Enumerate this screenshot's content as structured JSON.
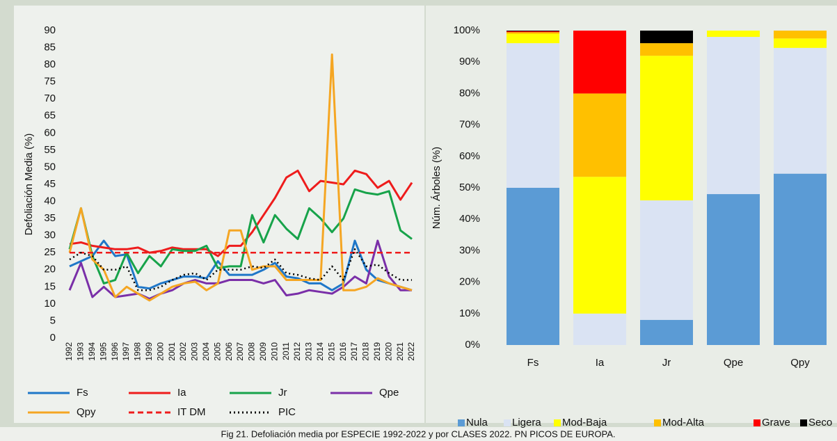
{
  "caption": "Fig 21. Defoliación media por ESPECIE 1992-2022 y por CLASES 2022. PN PICOS DE EUROPA.",
  "chart_data": [
    {
      "type": "line",
      "y_label": "Defoliación Media (%)",
      "categories": [
        "1992",
        "1993",
        "1994",
        "1995",
        "1996",
        "1997",
        "1998",
        "1999",
        "2000",
        "2001",
        "2002",
        "2003",
        "2004",
        "2005",
        "2006",
        "2007",
        "2008",
        "2009",
        "2010",
        "2011",
        "2012",
        "2013",
        "2014",
        "2015",
        "2016",
        "2017",
        "2018",
        "2019",
        "2020",
        "2021",
        "2022"
      ],
      "ylim": [
        0,
        90
      ],
      "yticks": [
        0,
        5,
        10,
        15,
        20,
        25,
        30,
        35,
        40,
        45,
        50,
        55,
        60,
        65,
        70,
        75,
        80,
        85,
        90
      ],
      "grid": false,
      "legend": "bottom",
      "series": [
        {
          "name": "Fs",
          "color": "#1f77c8",
          "dash": "solid",
          "values": [
            21,
            22.5,
            24,
            28.5,
            24,
            24.5,
            15,
            14.5,
            16,
            17,
            18,
            18,
            17.5,
            22.5,
            18.5,
            18.5,
            18.5,
            20,
            22,
            18,
            17.5,
            16,
            16,
            14,
            16,
            28.5,
            20,
            17,
            16,
            15,
            14
          ]
        },
        {
          "name": "Ia",
          "color": "#ee1c1c",
          "dash": "solid",
          "values": [
            27.5,
            28,
            27,
            26.5,
            26,
            26,
            26.5,
            25,
            25.5,
            26.5,
            26,
            26,
            26,
            24,
            27,
            27,
            31,
            36,
            41,
            47,
            49,
            43,
            46,
            45.5,
            45,
            49,
            48,
            44,
            46,
            40.5,
            45.5
          ]
        },
        {
          "name": "Jr",
          "color": "#17a34a",
          "dash": "solid",
          "values": [
            26,
            38,
            24,
            16,
            17,
            25,
            19,
            24,
            21,
            26,
            25.5,
            25.5,
            27,
            20.5,
            21,
            21,
            36,
            28,
            36,
            32,
            29,
            38,
            35,
            31,
            35,
            43.5,
            42.5,
            42,
            43,
            31.5,
            29
          ]
        },
        {
          "name": "Qpe",
          "color": "#7a2fa8",
          "dash": "solid",
          "values": [
            14,
            22,
            12,
            15,
            12,
            12.5,
            13,
            11.5,
            13,
            14,
            16,
            17,
            16,
            16,
            17,
            17,
            17,
            16,
            17,
            12.5,
            13,
            14,
            13.5,
            13,
            15,
            18,
            16,
            28.5,
            18,
            14,
            14
          ]
        },
        {
          "name": "Qpy",
          "color": "#f5a623",
          "dash": "solid",
          "values": [
            25,
            38,
            23,
            20,
            12,
            15,
            13,
            11,
            13,
            15,
            16,
            16.5,
            14,
            16,
            31.5,
            31.5,
            20,
            21,
            21,
            17,
            17,
            17,
            17,
            83,
            14,
            14,
            15,
            17.5,
            16,
            15,
            14
          ]
        },
        {
          "name": "IT DM",
          "color": "#ee1c1c",
          "dash": "dashed",
          "values": [
            25,
            25,
            25,
            25,
            25,
            25,
            25,
            25,
            25,
            25,
            25,
            25,
            25,
            25,
            25,
            25,
            25,
            25,
            25,
            25,
            25,
            25,
            25,
            25,
            25,
            25,
            25,
            25,
            25,
            25,
            25
          ]
        },
        {
          "name": "PIC",
          "color": "#000000",
          "dash": "dotted",
          "values": [
            23,
            25,
            24,
            20,
            20,
            21,
            14,
            14,
            15,
            17,
            18.5,
            19,
            17,
            20,
            20,
            20,
            21,
            20.5,
            23,
            19,
            18.5,
            17.5,
            17,
            21,
            17,
            26,
            21,
            21.5,
            19,
            17,
            17
          ]
        }
      ]
    },
    {
      "type": "bar",
      "stacked": true,
      "y_label": "Núm. Árboles (%)",
      "categories": [
        "Fs",
        "Ia",
        "Jr",
        "Qpe",
        "Qpy"
      ],
      "ylim": [
        0,
        100
      ],
      "yticks": [
        {
          "value": 0,
          "label": "0%"
        },
        {
          "value": 10,
          "label": "10%"
        },
        {
          "value": 20,
          "label": "20%"
        },
        {
          "value": 30,
          "label": "30%"
        },
        {
          "value": 40,
          "label": "40%"
        },
        {
          "value": 50,
          "label": "50%"
        },
        {
          "value": 60,
          "label": "60%"
        },
        {
          "value": 70,
          "label": "70%"
        },
        {
          "value": 80,
          "label": "80%"
        },
        {
          "value": 90,
          "label": "90%"
        },
        {
          "value": 100,
          "label": "100%"
        }
      ],
      "grid": false,
      "legend": "bottom",
      "series": [
        {
          "name": "Nula",
          "color": "#5b9bd5",
          "values": [
            50,
            0,
            8,
            48,
            54.5
          ]
        },
        {
          "name": "Ligera",
          "color": "#dae3f3",
          "values": [
            46,
            10,
            38,
            50,
            40
          ]
        },
        {
          "name": "Mod-Baja",
          "color": "#ffff00",
          "values": [
            3,
            43.5,
            46,
            2,
            3
          ]
        },
        {
          "name": "Mod-Alta",
          "color": "#ffc000",
          "values": [
            0.5,
            26.5,
            4,
            0,
            2.5
          ]
        },
        {
          "name": "Grave",
          "color": "#ff0000",
          "values": [
            0.3,
            20,
            0,
            0,
            0
          ]
        },
        {
          "name": "Seco",
          "color": "#000000",
          "values": [
            0.2,
            0,
            4,
            0,
            0
          ]
        }
      ]
    }
  ]
}
